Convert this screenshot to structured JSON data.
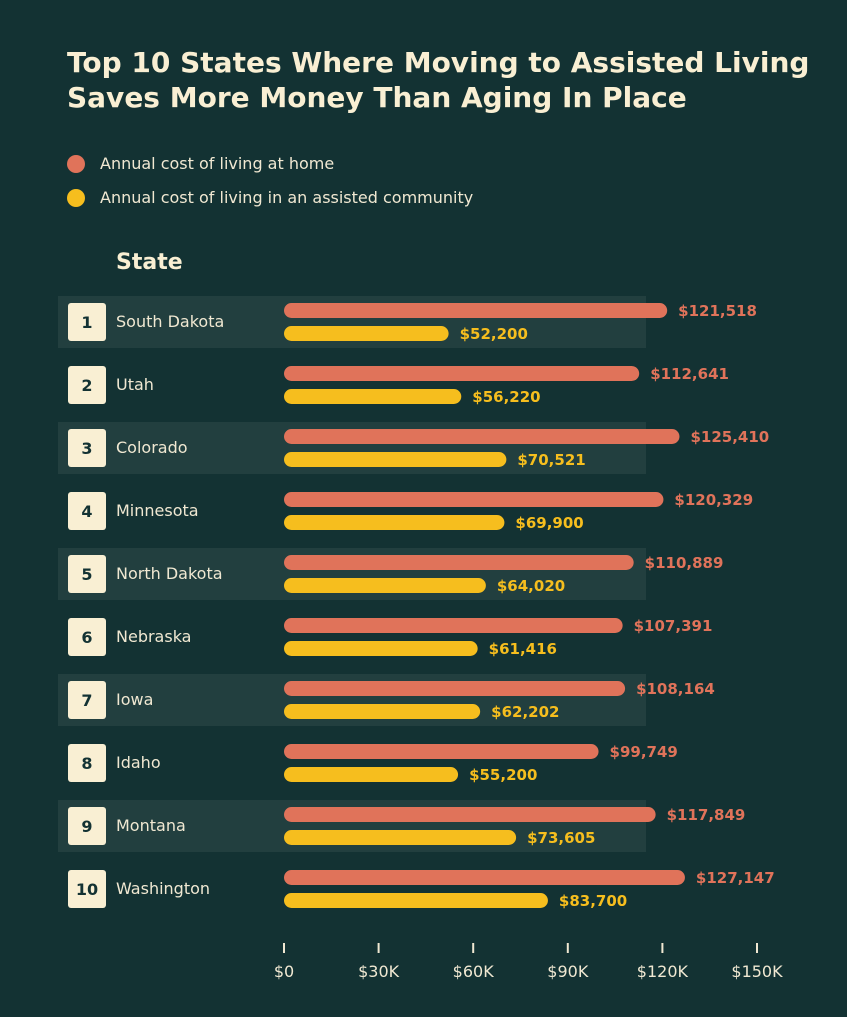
{
  "title_line1": "Top 10 States Where Moving to Assisted Living",
  "title_line2": "Saves More Money Than Aging In Place",
  "column_header": "State",
  "colors": {
    "background": "#133233",
    "row_band": "#223F3F",
    "home": "#E0735A",
    "assisted": "#F6BE1E",
    "rank_box": "#F9EFD3",
    "text": "#F0E8D2"
  },
  "chart_data": {
    "type": "bar",
    "orientation": "horizontal",
    "categories": [
      "South Dakota",
      "Utah",
      "Colorado",
      "Minnesota",
      "North Dakota",
      "Nebraska",
      "Iowa",
      "Idaho",
      "Montana",
      "Washington"
    ],
    "ranks": [
      "1",
      "2",
      "3",
      "4",
      "5",
      "6",
      "7",
      "8",
      "9",
      "10"
    ],
    "series": [
      {
        "name": "Annual cost of living at home",
        "color": "#E0735A",
        "values": [
          121518,
          112641,
          125410,
          120329,
          110889,
          107391,
          108164,
          99749,
          117849,
          127147
        ],
        "labels": [
          "$121,518",
          "$112,641",
          "$125,410",
          "$120,329",
          "$110,889",
          "$107,391",
          "$108,164",
          "$99,749",
          "$117,849",
          "$127,147"
        ]
      },
      {
        "name": "Annual cost of living in an assisted community",
        "color": "#F6BE1E",
        "values": [
          52200,
          56220,
          70521,
          69900,
          64020,
          61416,
          62202,
          55200,
          73605,
          83700
        ],
        "labels": [
          "$52,200",
          "$56,220",
          "$70,521",
          "$69,900",
          "$64,020",
          "$61,416",
          "$62,202",
          "$55,200",
          "$73,605",
          "$83,700"
        ]
      }
    ],
    "xlim": [
      0,
      150000
    ],
    "xticks": [
      0,
      30000,
      60000,
      90000,
      120000,
      150000
    ],
    "xtick_labels": [
      "$0",
      "$30K",
      "$60K",
      "$90K",
      "$120K",
      "$150K"
    ],
    "legend_position": "top-left",
    "grid": false
  }
}
